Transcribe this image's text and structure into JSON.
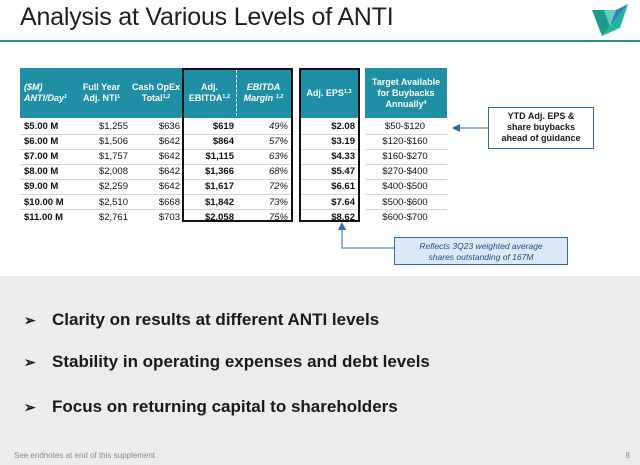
{
  "title": "Analysis at Various Levels of ANTI",
  "headers": {
    "col0_line1": "($M)",
    "col0_line2": "ANTI/Day",
    "col0_sup": "1",
    "col1_line1": "Full Year",
    "col1_line2": "Adj. NTI",
    "col1_sup": "1",
    "col2_line1": "Cash OpEx",
    "col2_line2": "Total",
    "col2_sup": "1,2",
    "col3_line1": "Adj.",
    "col3_line2": "EBITDA",
    "col3_sup": "1,2",
    "col4_line1": "EBITDA",
    "col4_line2": "Margin",
    "col4_sup": "1,2",
    "col5_line1": "Adj. EPS",
    "col5_sup": "1,3",
    "col6_line1": "Target Available",
    "col6_line2": "for Buybacks",
    "col6_line3": "Annually",
    "col6_sup": "4"
  },
  "rows": [
    [
      "$5.00 M",
      "$1,255",
      "$636",
      "$619",
      "49%",
      "$2.08",
      "$50-$120"
    ],
    [
      "$6.00 M",
      "$1,506",
      "$642",
      "$864",
      "57%",
      "$3.19",
      "$120-$160"
    ],
    [
      "$7.00 M",
      "$1,757",
      "$642",
      "$1,115",
      "63%",
      "$4.33",
      "$160-$270"
    ],
    [
      "$8.00 M",
      "$2,008",
      "$642",
      "$1,366",
      "68%",
      "$5.47",
      "$270-$400"
    ],
    [
      "$9.00 M",
      "$2,259",
      "$642",
      "$1,617",
      "72%",
      "$6.61",
      "$400-$500"
    ],
    [
      "$10.00 M",
      "$2,510",
      "$668",
      "$1,842",
      "73%",
      "$7.64",
      "$500-$600"
    ],
    [
      "$11.00 M",
      "$2,761",
      "$703",
      "$2,058",
      "75%",
      "$8.62",
      "$600-$700"
    ]
  ],
  "callout_right": [
    "YTD Adj. EPS &",
    "share buybacks",
    "ahead of guidance"
  ],
  "callout_bottom": [
    "Reflects 3Q23 weighted average",
    "shares outstanding of 167M"
  ],
  "bullets": [
    "Clarity on results at different ANTI levels",
    "Stability in operating expenses and debt levels",
    "Focus on returning capital to shareholders"
  ],
  "bullet_marker": "➢",
  "footnote": "See endnotes at end of this supplement",
  "page_number": "8",
  "colors": {
    "header": "#1f8fa6",
    "accent": "#2a6db5",
    "panel": "#ececec"
  }
}
